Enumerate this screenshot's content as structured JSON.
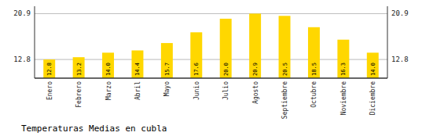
{
  "chart_data": {
    "type": "bar",
    "title": "Temperaturas Medias en cubla",
    "categories": [
      "Enero",
      "Febrero",
      "Marzo",
      "Abril",
      "Mayo",
      "Junio",
      "Julio",
      "Agosto",
      "Septiembre",
      "Octubre",
      "Noviembre",
      "Diciembre"
    ],
    "values": [
      12.8,
      13.2,
      14.0,
      14.4,
      15.7,
      17.6,
      20.0,
      20.9,
      20.5,
      18.5,
      16.3,
      14.0
    ],
    "value_labels": [
      "12.8",
      "13.2",
      "14.0",
      "14.4",
      "15.7",
      "17.6",
      "20.0",
      "20.9",
      "20.5",
      "18.5",
      "16.3",
      "14.0"
    ],
    "color": "#FFD700",
    "ylim": [
      9.5,
      22.2
    ],
    "yticks": [
      12.8,
      20.9
    ],
    "grid": true,
    "data_labels": true
  }
}
